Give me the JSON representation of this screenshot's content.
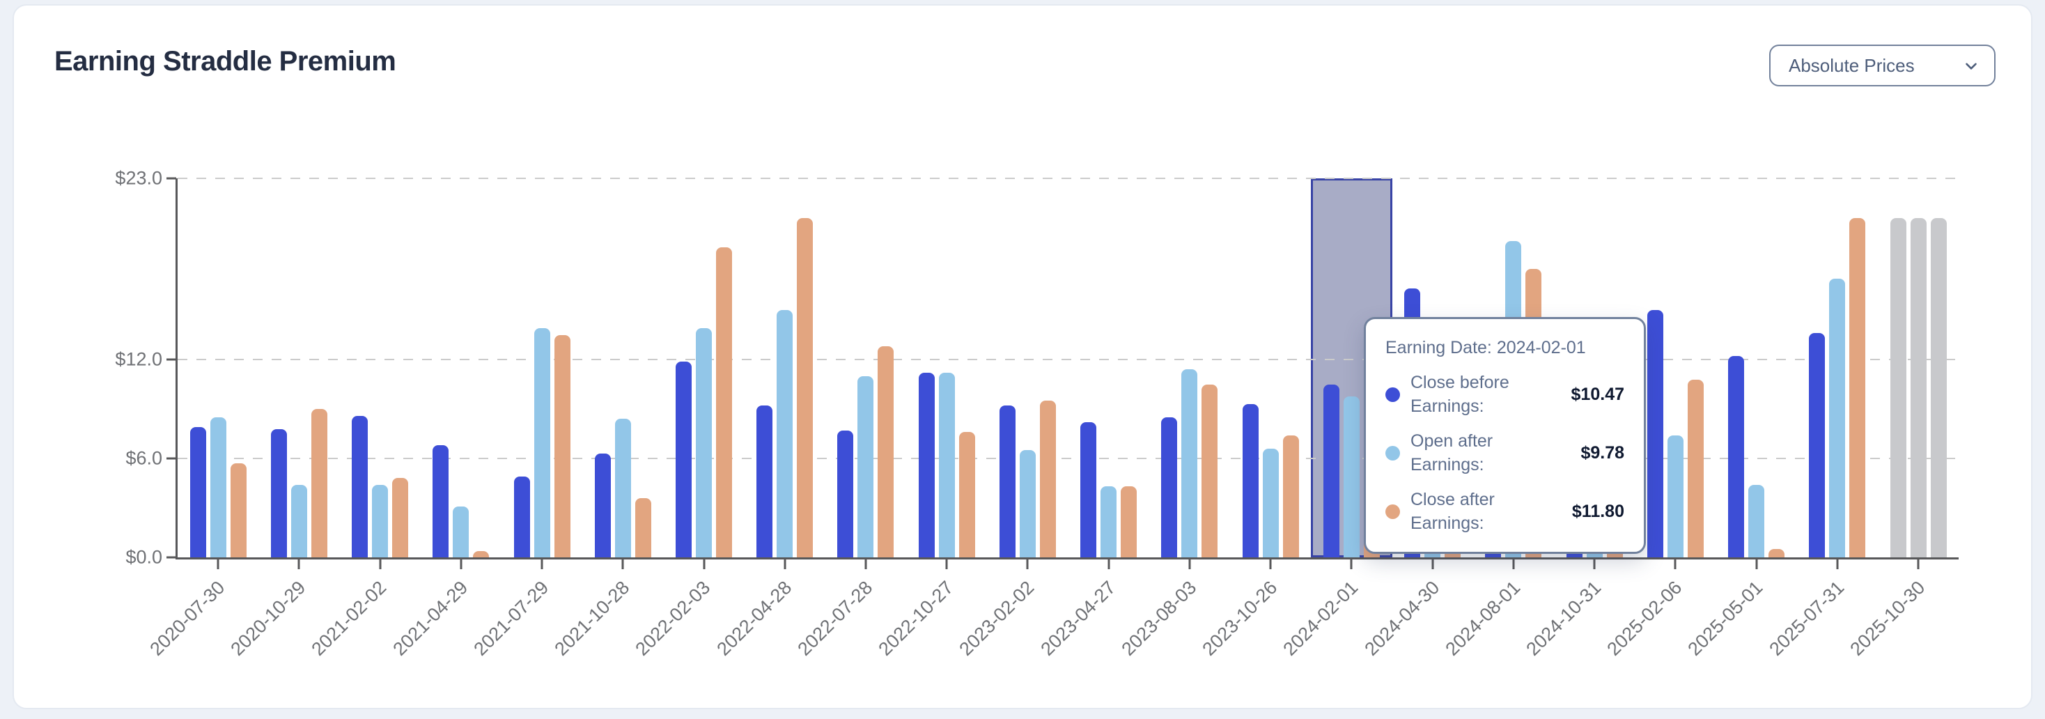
{
  "header": {
    "title": "Earning Straddle Premium",
    "dropdown": {
      "value": "Absolute Prices"
    }
  },
  "chart_data": {
    "type": "bar",
    "title": "Earning Straddle Premium",
    "xlabel": "",
    "ylabel": "",
    "ylim": [
      0,
      23
    ],
    "grid": "horizontal dashed",
    "legend_position": "none (tooltip only)",
    "y_ticks": [
      {
        "label": "$23.0",
        "value": 23
      },
      {
        "label": "$12.0",
        "value": 12
      },
      {
        "label": "$6.0",
        "value": 6
      },
      {
        "label": "$0.0",
        "value": 0
      }
    ],
    "categories": [
      "2020-07-30",
      "2020-10-29",
      "2021-02-02",
      "2021-04-29",
      "2021-07-29",
      "2021-10-28",
      "2022-02-03",
      "2022-04-28",
      "2022-07-28",
      "2022-10-27",
      "2023-02-02",
      "2023-04-27",
      "2023-08-03",
      "2023-10-26",
      "2024-02-01",
      "2024-04-30",
      "2024-08-01",
      "2024-10-31",
      "2025-02-06",
      "2025-05-01",
      "2025-07-31",
      "2025-10-30"
    ],
    "series": [
      {
        "name": "Close before Earnings",
        "color": "#3D4ED6",
        "values": [
          7.9,
          7.8,
          8.6,
          6.8,
          4.9,
          6.3,
          11.9,
          9.2,
          7.7,
          11.2,
          9.2,
          8.2,
          8.5,
          9.3,
          10.47,
          16.3,
          12.0,
          12.4,
          15.0,
          12.2,
          13.6,
          20.6
        ]
      },
      {
        "name": "Open after Earnings",
        "color": "#92C6E8",
        "values": [
          8.5,
          4.4,
          4.4,
          3.1,
          13.9,
          8.4,
          13.9,
          15.0,
          11.0,
          11.2,
          6.5,
          4.3,
          11.4,
          6.6,
          9.78,
          9.2,
          19.2,
          8.8,
          7.4,
          4.4,
          16.9,
          20.6
        ]
      },
      {
        "name": "Close after Earnings",
        "color": "#E2A580",
        "values": [
          5.7,
          9.0,
          4.8,
          0.4,
          13.5,
          3.6,
          18.8,
          20.6,
          12.8,
          7.6,
          9.5,
          4.3,
          10.5,
          7.4,
          11.8,
          10.1,
          17.5,
          10.9,
          10.8,
          0.5,
          20.6,
          20.6
        ]
      }
    ],
    "highlight": {
      "category": "2024-02-01",
      "fill": "rgba(110,116,160,0.6)",
      "border_color": "#3944A6"
    },
    "muted": {
      "category": "2025-10-30",
      "color": "#C8C9CC"
    },
    "axis_color": "#58585A",
    "grid_color": "#CBCBCB",
    "tick_label_color": "#6F7175"
  },
  "tooltip": {
    "title": "Earning Date: 2024-02-01",
    "rows": [
      {
        "label": "Close before Earnings:",
        "value": "$10.47",
        "color": "#3D4ED6"
      },
      {
        "label": "Open after Earnings:",
        "value": "$9.78",
        "color": "#92C6E8"
      },
      {
        "label": "Close after Earnings:",
        "value": "$11.80",
        "color": "#E2A580"
      }
    ]
  }
}
